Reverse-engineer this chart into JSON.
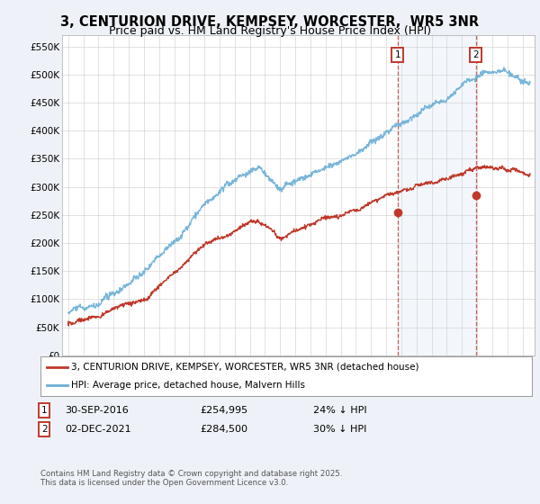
{
  "title": "3, CENTURION DRIVE, KEMPSEY, WORCESTER,  WR5 3NR",
  "subtitle": "Price paid vs. HM Land Registry's House Price Index (HPI)",
  "ylim": [
    0,
    570000
  ],
  "yticks": [
    0,
    50000,
    100000,
    150000,
    200000,
    250000,
    300000,
    350000,
    400000,
    450000,
    500000,
    550000
  ],
  "ytick_labels": [
    "£0",
    "£50K",
    "£100K",
    "£150K",
    "£200K",
    "£250K",
    "£300K",
    "£350K",
    "£400K",
    "£450K",
    "£500K",
    "£550K"
  ],
  "hpi_color": "#6baed6",
  "price_color": "#c0392b",
  "marker1_date": 2016.75,
  "marker1_price": 254995,
  "marker2_date": 2021.92,
  "marker2_price": 284500,
  "legend_line1": "3, CENTURION DRIVE, KEMPSEY, WORCESTER, WR5 3NR (detached house)",
  "legend_line2": "HPI: Average price, detached house, Malvern Hills",
  "footer": "Contains HM Land Registry data © Crown copyright and database right 2025.\nThis data is licensed under the Open Government Licence v3.0.",
  "background_color": "#eef2f8",
  "plot_bg": "#ffffff",
  "title_fontsize": 10.5,
  "subtitle_fontsize": 9
}
